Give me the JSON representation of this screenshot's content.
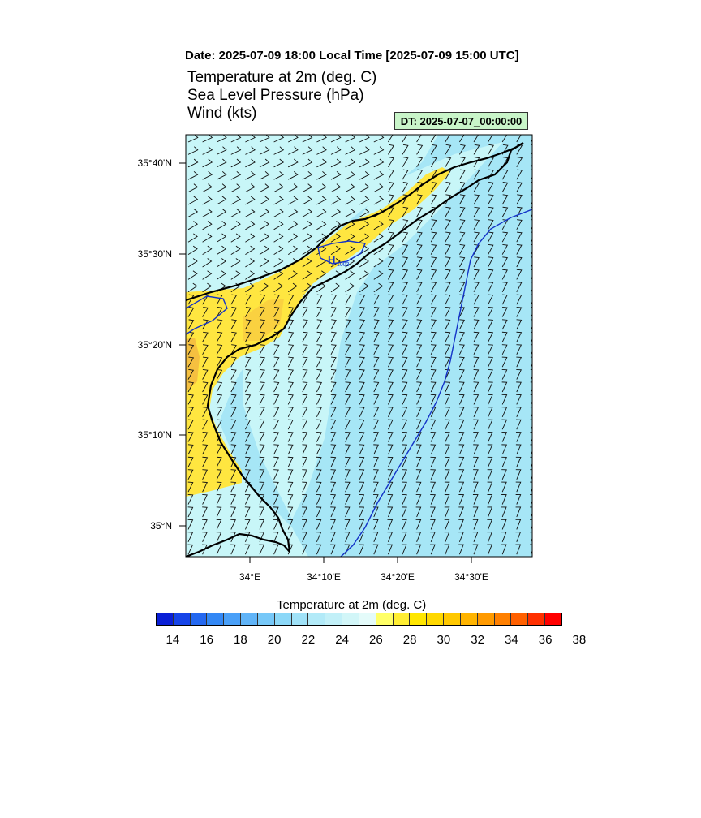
{
  "header": {
    "date_line": "Date: 2025-07-09  18:00 Local Time [2025-07-09  15:00 UTC]",
    "field_1": "Temperature at 2m   (deg. C)",
    "field_2": "Sea Level Pressure   (hPa)",
    "field_3": "Wind   (kts)",
    "dt_badge": "DT: 2025-07-07_00:00:00"
  },
  "map": {
    "lat_labels": [
      "35°40'N",
      "35°30'N",
      "35°20'N",
      "35°10'N",
      "35°N"
    ],
    "lon_labels": [
      "34°E",
      "34°10'E",
      "34°20'E",
      "34°30'E"
    ],
    "pressure_high_label": "H",
    "pressure_high_value": "1003"
  },
  "colorbar": {
    "title": "Temperature at 2m  (deg. C)",
    "tick_labels": [
      "14",
      "16",
      "18",
      "20",
      "22",
      "24",
      "26",
      "28",
      "30",
      "32",
      "34",
      "36",
      "38"
    ],
    "colors": [
      "#0a1fd6",
      "#1644e8",
      "#2468f0",
      "#3388f5",
      "#4aa0f8",
      "#60b4f8",
      "#77c8f8",
      "#8cd8f8",
      "#a0e2f8",
      "#b2eaf8",
      "#c2f0f8",
      "#d2f6f8",
      "#e4fbfa",
      "#ffff66",
      "#ffee33",
      "#ffe600",
      "#ffd800",
      "#ffc800",
      "#ffb400",
      "#ff9a00",
      "#ff8000",
      "#ff6000",
      "#ff3000",
      "#ff0000"
    ],
    "ocean_color": "#a6e6f6",
    "near_coast_color": "#c8f6f8",
    "warm_land_color": "#ffe640",
    "hot_land_color": "#f5c040",
    "isobar_color": "#1433c8"
  }
}
